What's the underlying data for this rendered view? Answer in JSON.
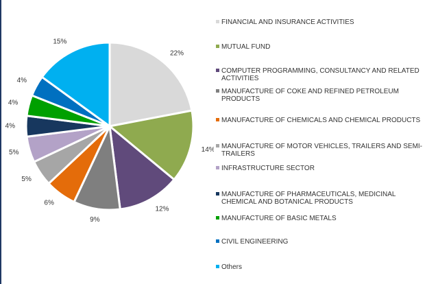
{
  "chart_data": {
    "type": "pie",
    "categories": [
      "FINANCIAL AND INSURANCE ACTIVITIES",
      "MUTUAL FUND",
      "COMPUTER PROGRAMMING, CONSULTANCY AND RELATED ACTIVITIES",
      "MANUFACTURE OF COKE AND REFINED PETROLEUM PRODUCTS",
      "MANUFACTURE OF CHEMICALS AND CHEMICAL PRODUCTS",
      "MANUFACTURE OF MOTOR VEHICLES, TRAILERS AND SEMI-TRAILERS",
      "INFRASTRUCTURE SECTOR",
      "MANUFACTURE OF PHARMACEUTICALS, MEDICINAL CHEMICAL AND BOTANICAL PRODUCTS",
      "MANUFACTURE OF BASIC METALS",
      "CIVIL ENGINEERING",
      "Others"
    ],
    "values": [
      22,
      14,
      12,
      9,
      6,
      5,
      5,
      4,
      4,
      4,
      15
    ],
    "value_labels": [
      "22%",
      "14%",
      "12%",
      "9%",
      "6%",
      "5%",
      "5%",
      "4%",
      "4%",
      "4%",
      "15%"
    ],
    "colors": [
      "#d9d9d9",
      "#8faa4f",
      "#604a7b",
      "#7f7f7f",
      "#e46c0a",
      "#a6a6a6",
      "#b3a2c7",
      "#17375e",
      "#00a000",
      "#0070c0",
      "#00b0f0"
    ]
  }
}
